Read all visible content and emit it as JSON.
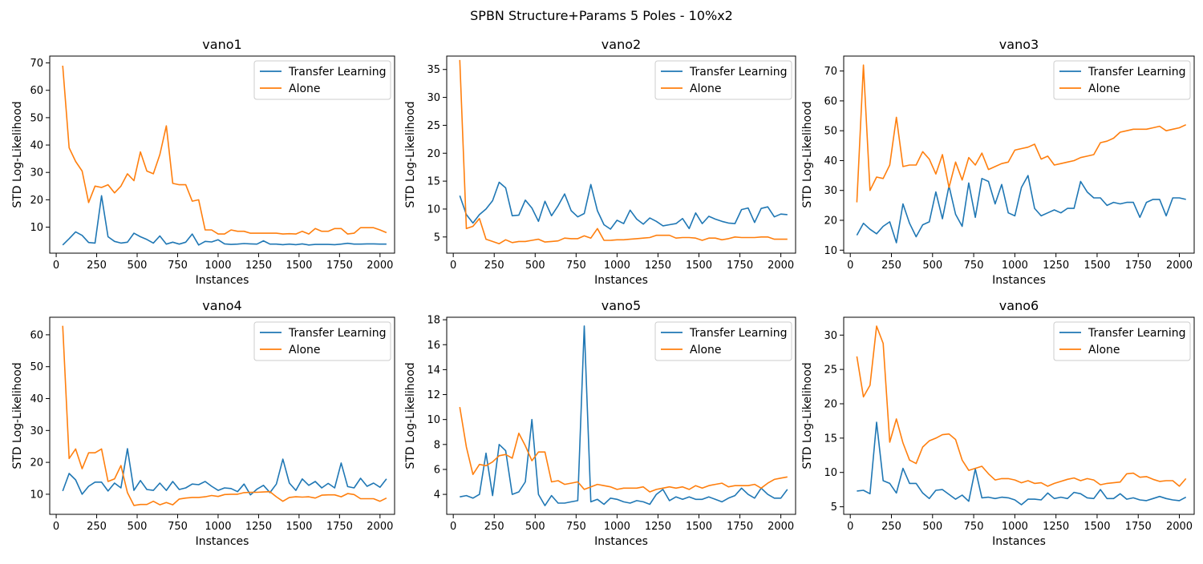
{
  "figure": {
    "title": "SPBN Structure+Params 5 Poles - 10%x2"
  },
  "chart_data": [
    {
      "type": "line",
      "title": "vano1",
      "xlabel": "Instances",
      "ylabel": "STD Log-Likelihood",
      "xlim": [
        -40,
        2090
      ],
      "ylim": [
        0.5,
        72.5
      ],
      "xticks": [
        0,
        250,
        500,
        750,
        1000,
        1250,
        1500,
        1750,
        2000
      ],
      "yticks": [
        10,
        20,
        30,
        40,
        50,
        60,
        70
      ],
      "legend": "top-right",
      "x": [
        40,
        80,
        120,
        160,
        200,
        240,
        280,
        320,
        360,
        400,
        440,
        480,
        520,
        560,
        600,
        640,
        680,
        720,
        760,
        800,
        840,
        880,
        920,
        960,
        1000,
        1040,
        1080,
        1120,
        1160,
        1200,
        1240,
        1280,
        1320,
        1360,
        1400,
        1440,
        1480,
        1520,
        1560,
        1600,
        1640,
        1680,
        1720,
        1760,
        1800,
        1840,
        1880,
        1920,
        1960,
        2000,
        2040
      ],
      "series": [
        {
          "name": "Transfer Learning",
          "color": "#1f77b4",
          "values": [
            3.5,
            5.8,
            8.3,
            7.0,
            4.4,
            4.2,
            21.5,
            6.5,
            4.8,
            4.2,
            4.5,
            7.8,
            6.5,
            5.5,
            4.2,
            6.8,
            3.8,
            4.5,
            3.8,
            4.5,
            7.5,
            3.5,
            4.8,
            4.6,
            5.4,
            3.9,
            3.7,
            3.8,
            4.0,
            3.9,
            3.8,
            5.0,
            3.8,
            3.8,
            3.6,
            3.8,
            3.6,
            3.9,
            3.5,
            3.7,
            3.7,
            3.7,
            3.6,
            3.8,
            4.1,
            3.8,
            3.8,
            3.9,
            3.9,
            3.8,
            3.8
          ]
        },
        {
          "name": "Alone",
          "color": "#ff7f0e",
          "values": [
            69.0,
            39.0,
            34.0,
            30.5,
            19.0,
            25.0,
            24.5,
            25.5,
            22.5,
            25.0,
            29.5,
            27.0,
            37.5,
            30.5,
            29.5,
            36.5,
            47.0,
            26.0,
            25.5,
            25.5,
            19.5,
            20.0,
            9.0,
            9.0,
            7.5,
            7.5,
            9.0,
            8.5,
            8.5,
            7.8,
            7.8,
            7.8,
            7.8,
            7.8,
            7.5,
            7.6,
            7.5,
            8.5,
            7.5,
            9.5,
            8.5,
            8.5,
            9.5,
            9.5,
            7.5,
            7.8,
            9.8,
            9.8,
            9.8,
            9.0,
            8.0
          ]
        }
      ]
    },
    {
      "type": "line",
      "title": "vano2",
      "xlabel": "Instances",
      "ylabel": "STD Log-Likelihood",
      "xlim": [
        -40,
        2090
      ],
      "ylim": [
        2.1,
        37.4
      ],
      "xticks": [
        0,
        250,
        500,
        750,
        1000,
        1250,
        1500,
        1750,
        2000
      ],
      "yticks": [
        5,
        10,
        15,
        20,
        25,
        30,
        35
      ],
      "legend": "top-right",
      "x": [
        40,
        80,
        120,
        160,
        200,
        240,
        280,
        320,
        360,
        400,
        440,
        480,
        520,
        560,
        600,
        640,
        680,
        720,
        760,
        800,
        840,
        880,
        920,
        960,
        1000,
        1040,
        1080,
        1120,
        1160,
        1200,
        1240,
        1280,
        1320,
        1360,
        1400,
        1440,
        1480,
        1520,
        1560,
        1600,
        1640,
        1680,
        1720,
        1760,
        1800,
        1840,
        1880,
        1920,
        1960,
        2000,
        2040
      ],
      "series": [
        {
          "name": "Transfer Learning",
          "color": "#1f77b4",
          "values": [
            12.4,
            9.0,
            7.5,
            9.0,
            10.0,
            11.5,
            14.8,
            13.8,
            8.8,
            8.9,
            11.6,
            10.2,
            7.8,
            11.4,
            8.8,
            10.6,
            12.7,
            9.7,
            8.6,
            9.2,
            14.4,
            9.7,
            7.2,
            6.4,
            8.0,
            7.4,
            9.8,
            8.2,
            7.3,
            8.4,
            7.8,
            7.0,
            7.2,
            7.4,
            8.3,
            6.5,
            9.3,
            7.4,
            8.7,
            8.2,
            7.8,
            7.5,
            7.4,
            9.9,
            10.2,
            7.6,
            10.1,
            10.4,
            8.6,
            9.1,
            9.0
          ]
        },
        {
          "name": "Alone",
          "color": "#ff7f0e",
          "values": [
            36.7,
            6.5,
            6.9,
            8.3,
            4.6,
            4.2,
            3.8,
            4.5,
            4.0,
            4.2,
            4.2,
            4.4,
            4.6,
            4.1,
            4.2,
            4.3,
            4.8,
            4.7,
            4.7,
            5.2,
            4.8,
            6.5,
            4.4,
            4.4,
            4.5,
            4.5,
            4.6,
            4.7,
            4.8,
            4.9,
            5.3,
            5.3,
            5.3,
            4.8,
            4.9,
            4.9,
            4.8,
            4.4,
            4.8,
            4.8,
            4.5,
            4.7,
            5.0,
            4.9,
            4.9,
            4.9,
            5.0,
            5.0,
            4.6,
            4.6,
            4.6
          ]
        }
      ]
    },
    {
      "type": "line",
      "title": "vano3",
      "xlabel": "Instances",
      "ylabel": "STD Log-Likelihood",
      "xlim": [
        -40,
        2090
      ],
      "ylim": [
        9.0,
        75.0
      ],
      "xticks": [
        0,
        250,
        500,
        750,
        1000,
        1250,
        1500,
        1750,
        2000
      ],
      "yticks": [
        10,
        20,
        30,
        40,
        50,
        60,
        70
      ],
      "legend": "top-right",
      "x": [
        40,
        80,
        120,
        160,
        200,
        240,
        280,
        320,
        360,
        400,
        440,
        480,
        520,
        560,
        600,
        640,
        680,
        720,
        760,
        800,
        840,
        880,
        920,
        960,
        1000,
        1040,
        1080,
        1120,
        1160,
        1200,
        1240,
        1280,
        1320,
        1360,
        1400,
        1440,
        1480,
        1520,
        1560,
        1600,
        1640,
        1680,
        1720,
        1760,
        1800,
        1840,
        1880,
        1920,
        1960,
        2000,
        2040
      ],
      "series": [
        {
          "name": "Transfer Learning",
          "color": "#1f77b4",
          "values": [
            15.0,
            19.0,
            17.0,
            15.5,
            18.0,
            19.5,
            12.5,
            25.5,
            19.0,
            14.5,
            18.5,
            19.5,
            29.5,
            20.5,
            31.5,
            22.0,
            18.0,
            32.5,
            21.0,
            34.0,
            33.0,
            25.5,
            32.0,
            22.5,
            21.5,
            31.0,
            35.0,
            24.0,
            21.5,
            22.5,
            23.5,
            22.5,
            24.0,
            24.0,
            33.0,
            29.5,
            27.5,
            27.5,
            25.0,
            26.0,
            25.5,
            26.0,
            26.0,
            21.0,
            26.0,
            27.0,
            27.0,
            21.5,
            27.5,
            27.5,
            27.0
          ]
        },
        {
          "name": "Alone",
          "color": "#ff7f0e",
          "values": [
            26.0,
            72.0,
            30.0,
            34.5,
            34.0,
            38.5,
            54.5,
            38.0,
            38.5,
            38.5,
            43.0,
            40.5,
            35.5,
            42.0,
            31.0,
            39.5,
            33.5,
            41.0,
            38.5,
            42.5,
            37.0,
            38.0,
            39.0,
            39.5,
            43.5,
            44.0,
            44.5,
            45.5,
            40.5,
            41.5,
            38.5,
            39.0,
            39.5,
            40.0,
            41.0,
            41.5,
            42.0,
            46.0,
            46.5,
            47.5,
            49.5,
            50.0,
            50.5,
            50.5,
            50.5,
            51.0,
            51.5,
            50.0,
            50.5,
            51.0,
            52.0
          ]
        }
      ]
    },
    {
      "type": "line",
      "title": "vano4",
      "xlabel": "Instances",
      "ylabel": "STD Log-Likelihood",
      "xlim": [
        -40,
        2090
      ],
      "ylim": [
        3.7,
        65.5
      ],
      "xticks": [
        0,
        250,
        500,
        750,
        1000,
        1250,
        1500,
        1750,
        2000
      ],
      "yticks": [
        10,
        20,
        30,
        40,
        50,
        60
      ],
      "legend": "top-right",
      "x": [
        40,
        80,
        120,
        160,
        200,
        240,
        280,
        320,
        360,
        400,
        440,
        480,
        520,
        560,
        600,
        640,
        680,
        720,
        760,
        800,
        840,
        880,
        920,
        960,
        1000,
        1040,
        1080,
        1120,
        1160,
        1200,
        1240,
        1280,
        1320,
        1360,
        1400,
        1440,
        1480,
        1520,
        1560,
        1600,
        1640,
        1680,
        1720,
        1760,
        1800,
        1840,
        1880,
        1920,
        1960,
        2000,
        2040
      ],
      "series": [
        {
          "name": "Transfer Learning",
          "color": "#1f77b4",
          "values": [
            11.0,
            16.5,
            14.5,
            10.0,
            12.5,
            13.8,
            13.8,
            11.0,
            13.5,
            12.0,
            24.3,
            11.2,
            14.3,
            11.5,
            11.2,
            13.5,
            11.2,
            14.0,
            11.5,
            12.0,
            13.2,
            13.0,
            14.0,
            12.5,
            11.2,
            12.0,
            11.8,
            10.8,
            13.2,
            9.8,
            11.6,
            12.8,
            10.5,
            13.2,
            21.0,
            13.5,
            11.2,
            14.8,
            12.8,
            14.0,
            12.0,
            13.4,
            12.0,
            19.8,
            12.4,
            12.0,
            15.0,
            12.5,
            13.5,
            12.2,
            14.8
          ]
        },
        {
          "name": "Alone",
          "color": "#ff7f0e",
          "values": [
            62.8,
            21.2,
            24.2,
            18.0,
            23.0,
            23.0,
            24.2,
            14.0,
            14.8,
            19.0,
            10.5,
            6.5,
            6.8,
            6.8,
            7.8,
            6.7,
            7.4,
            6.7,
            8.5,
            8.8,
            9.0,
            9.0,
            9.2,
            9.6,
            9.3,
            9.9,
            10.0,
            10.0,
            10.5,
            10.6,
            10.6,
            10.7,
            10.8,
            9.2,
            7.8,
            9.0,
            9.2,
            9.1,
            9.2,
            8.8,
            9.7,
            9.8,
            9.8,
            9.2,
            10.2,
            9.9,
            8.6,
            8.6,
            8.6,
            7.8,
            8.8
          ]
        }
      ]
    },
    {
      "type": "line",
      "title": "vano5",
      "xlabel": "Instances",
      "ylabel": "STD Log-Likelihood",
      "xlim": [
        -40,
        2090
      ],
      "ylim": [
        2.4,
        18.2
      ],
      "xticks": [
        0,
        250,
        500,
        750,
        1000,
        1250,
        1500,
        1750,
        2000
      ],
      "yticks": [
        4,
        6,
        8,
        10,
        12,
        14,
        16,
        18
      ],
      "legend": "top-right",
      "x": [
        40,
        80,
        120,
        160,
        200,
        240,
        280,
        320,
        360,
        400,
        440,
        480,
        520,
        560,
        600,
        640,
        680,
        720,
        760,
        800,
        840,
        880,
        920,
        960,
        1000,
        1040,
        1080,
        1120,
        1160,
        1200,
        1240,
        1280,
        1320,
        1360,
        1400,
        1440,
        1480,
        1520,
        1560,
        1600,
        1640,
        1680,
        1720,
        1760,
        1800,
        1840,
        1880,
        1920,
        1960,
        2000,
        2040
      ],
      "series": [
        {
          "name": "Transfer Learning",
          "color": "#1f77b4",
          "values": [
            3.8,
            3.9,
            3.7,
            4.0,
            7.3,
            3.9,
            8.0,
            7.5,
            4.0,
            4.2,
            5.0,
            10.0,
            4.0,
            3.1,
            3.9,
            3.3,
            3.3,
            3.4,
            3.5,
            17.5,
            3.4,
            3.6,
            3.2,
            3.7,
            3.6,
            3.4,
            3.3,
            3.5,
            3.4,
            3.2,
            4.0,
            4.4,
            3.5,
            3.8,
            3.6,
            3.8,
            3.6,
            3.6,
            3.8,
            3.6,
            3.4,
            3.7,
            3.9,
            4.5,
            4.0,
            3.7,
            4.5,
            4.0,
            3.7,
            3.7,
            4.4
          ]
        },
        {
          "name": "Alone",
          "color": "#ff7f0e",
          "values": [
            11.0,
            7.8,
            5.6,
            6.4,
            6.3,
            6.6,
            7.1,
            7.2,
            6.9,
            8.9,
            7.9,
            6.7,
            7.4,
            7.4,
            5.0,
            5.1,
            4.8,
            4.9,
            5.0,
            4.4,
            4.6,
            4.8,
            4.7,
            4.6,
            4.4,
            4.5,
            4.5,
            4.5,
            4.6,
            4.2,
            4.4,
            4.5,
            4.6,
            4.5,
            4.6,
            4.4,
            4.7,
            4.5,
            4.7,
            4.8,
            4.9,
            4.6,
            4.7,
            4.7,
            4.7,
            4.8,
            4.5,
            4.9,
            5.2,
            5.3,
            5.4
          ]
        }
      ]
    },
    {
      "type": "line",
      "title": "vano6",
      "xlabel": "Instances",
      "ylabel": "STD Log-Likelihood",
      "xlim": [
        -40,
        2090
      ],
      "ylim": [
        3.9,
        32.6
      ],
      "xticks": [
        0,
        250,
        500,
        750,
        1000,
        1250,
        1500,
        1750,
        2000
      ],
      "yticks": [
        5,
        10,
        15,
        20,
        25,
        30
      ],
      "legend": "top-right",
      "x": [
        40,
        80,
        120,
        160,
        200,
        240,
        280,
        320,
        360,
        400,
        440,
        480,
        520,
        560,
        600,
        640,
        680,
        720,
        760,
        800,
        840,
        880,
        920,
        960,
        1000,
        1040,
        1080,
        1120,
        1160,
        1200,
        1240,
        1280,
        1320,
        1360,
        1400,
        1440,
        1480,
        1520,
        1560,
        1600,
        1640,
        1680,
        1720,
        1760,
        1800,
        1840,
        1880,
        1920,
        1960,
        2000,
        2040
      ],
      "series": [
        {
          "name": "Transfer Learning",
          "color": "#1f77b4",
          "values": [
            7.3,
            7.4,
            6.9,
            17.3,
            8.8,
            8.4,
            7.0,
            10.6,
            8.4,
            8.4,
            7.0,
            6.2,
            7.4,
            7.5,
            6.8,
            6.1,
            6.7,
            5.8,
            10.5,
            6.3,
            6.4,
            6.2,
            6.4,
            6.3,
            6.0,
            5.3,
            6.1,
            6.1,
            6.0,
            7.0,
            6.2,
            6.4,
            6.2,
            7.1,
            6.9,
            6.3,
            6.2,
            7.5,
            6.2,
            6.2,
            6.9,
            6.1,
            6.3,
            6.0,
            5.9,
            6.2,
            6.5,
            6.2,
            6.0,
            5.9,
            6.4
          ]
        },
        {
          "name": "Alone",
          "color": "#ff7f0e",
          "values": [
            26.9,
            21.0,
            22.7,
            31.3,
            28.8,
            14.4,
            17.8,
            14.3,
            11.8,
            11.3,
            13.7,
            14.6,
            15.0,
            15.5,
            15.6,
            14.8,
            11.8,
            10.3,
            10.6,
            10.9,
            9.8,
            8.9,
            9.1,
            9.1,
            8.9,
            8.5,
            8.8,
            8.4,
            8.5,
            8.0,
            8.4,
            8.7,
            9.0,
            9.2,
            8.8,
            9.1,
            8.9,
            8.2,
            8.4,
            8.5,
            8.6,
            9.8,
            9.9,
            9.3,
            9.4,
            9.0,
            8.7,
            8.8,
            8.8,
            8.0,
            9.1
          ]
        }
      ]
    }
  ]
}
